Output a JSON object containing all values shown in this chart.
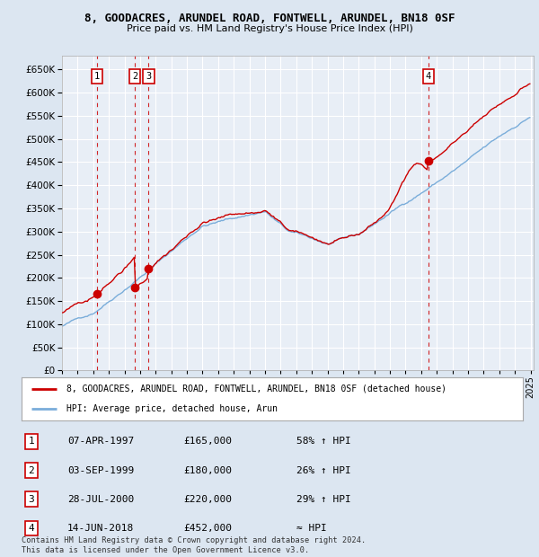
{
  "title": "8, GOODACRES, ARUNDEL ROAD, FONTWELL, ARUNDEL, BN18 0SF",
  "subtitle": "Price paid vs. HM Land Registry's House Price Index (HPI)",
  "sale_prices": [
    165000,
    180000,
    220000,
    452000
  ],
  "sale_labels": [
    "1",
    "2",
    "3",
    "4"
  ],
  "sale_hpi_pct": [
    "58% ↑ HPI",
    "26% ↑ HPI",
    "29% ↑ HPI",
    "≈ HPI"
  ],
  "sale_dates_str": [
    "07-APR-1997",
    "03-SEP-1999",
    "28-JUL-2000",
    "14-JUN-2018"
  ],
  "sale_prices_str": [
    "£165,000",
    "£180,000",
    "£220,000",
    "£452,000"
  ],
  "legend_line1": "8, GOODACRES, ARUNDEL ROAD, FONTWELL, ARUNDEL, BN18 0SF (detached house)",
  "legend_line2": "HPI: Average price, detached house, Arun",
  "footer": "Contains HM Land Registry data © Crown copyright and database right 2024.\nThis data is licensed under the Open Government Licence v3.0.",
  "property_color": "#cc0000",
  "hpi_color": "#7aadda",
  "background_color": "#dce6f1",
  "plot_bg_color": "#e8eef6",
  "ylim": [
    0,
    680000
  ],
  "yticks": [
    0,
    50000,
    100000,
    150000,
    200000,
    250000,
    300000,
    350000,
    400000,
    450000,
    500000,
    550000,
    600000,
    650000
  ],
  "grid_color": "#ffffff",
  "dashed_color": "#cc0000",
  "sale_times_float": [
    1997.25,
    1999.667,
    2000.542,
    2018.458
  ]
}
